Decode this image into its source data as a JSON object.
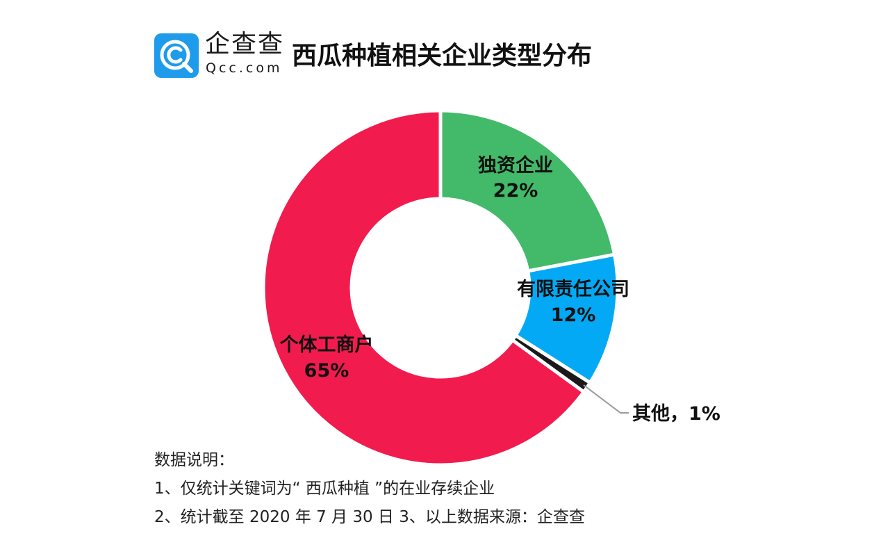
{
  "brand": {
    "name_cn": "企查查",
    "name_en": "Qcc.com",
    "color": "#1E9BEB"
  },
  "title": "西瓜种植相关企业类型分布",
  "chart_data": {
    "type": "pie",
    "variant": "donut",
    "title": "西瓜种植相关企业类型分布",
    "slices": [
      {
        "label": "独资企业",
        "value": 22,
        "display": "22%",
        "color": "#43B96A"
      },
      {
        "label": "有限责任公司",
        "value": 12,
        "display": "12%",
        "color": "#03A9F4"
      },
      {
        "label": "其他",
        "value": 1,
        "display": "其他，1%",
        "color": "#1A1A1A"
      },
      {
        "label": "个体工商户",
        "value": 65,
        "display": "65%",
        "color": "#F21B4E"
      }
    ]
  },
  "notes": {
    "heading": "数据说明：",
    "line1": "1、仅统计关键词为“ 西瓜种植 ”的在业存续企业",
    "line2": "2、统计截至 2020 年 7 月 30 日    3、以上数据来源：企查查"
  }
}
